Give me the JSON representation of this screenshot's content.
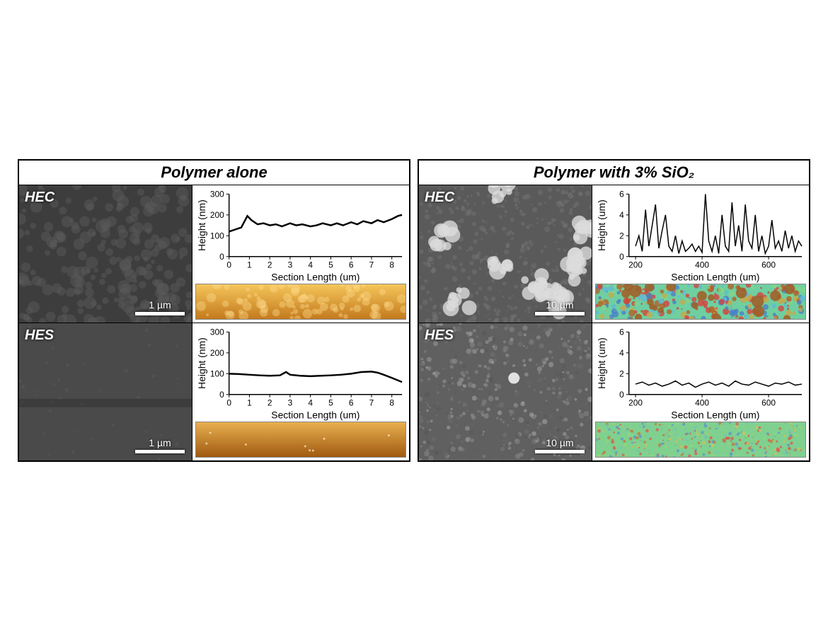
{
  "panels": [
    {
      "title": "Polymer alone",
      "rows": [
        {
          "sample_label": "HEC",
          "scalebar_text": "1 µm",
          "sem_style": "dark-bumpy",
          "chart": {
            "type": "line",
            "xlabel": "Section Length (um)",
            "ylabel": "Height (nm)",
            "xlim": [
              0,
              8.5
            ],
            "ylim": [
              0,
              300
            ],
            "xticks": [
              0,
              1,
              2,
              3,
              4,
              5,
              6,
              7,
              8
            ],
            "yticks": [
              0,
              100,
              200,
              300
            ],
            "line_color": "#000000",
            "line_width": 2.5,
            "data": [
              [
                0,
                120
              ],
              [
                0.3,
                130
              ],
              [
                0.6,
                140
              ],
              [
                0.9,
                195
              ],
              [
                1.1,
                175
              ],
              [
                1.4,
                155
              ],
              [
                1.7,
                160
              ],
              [
                2.0,
                150
              ],
              [
                2.3,
                155
              ],
              [
                2.6,
                145
              ],
              [
                3.0,
                160
              ],
              [
                3.3,
                150
              ],
              [
                3.6,
                155
              ],
              [
                4.0,
                145
              ],
              [
                4.3,
                150
              ],
              [
                4.6,
                160
              ],
              [
                5.0,
                150
              ],
              [
                5.3,
                160
              ],
              [
                5.6,
                150
              ],
              [
                6.0,
                165
              ],
              [
                6.3,
                155
              ],
              [
                6.6,
                170
              ],
              [
                7.0,
                160
              ],
              [
                7.3,
                175
              ],
              [
                7.6,
                165
              ],
              [
                8.0,
                180
              ],
              [
                8.3,
                195
              ],
              [
                8.5,
                200
              ]
            ]
          },
          "afm_style": "amber-bumpy"
        },
        {
          "sample_label": "HES",
          "scalebar_text": "1 µm",
          "sem_style": "dark-smooth",
          "chart": {
            "type": "line",
            "xlabel": "Section Length (um)",
            "ylabel": "Height (nm)",
            "xlim": [
              0,
              8.5
            ],
            "ylim": [
              0,
              300
            ],
            "xticks": [
              0,
              1,
              2,
              3,
              4,
              5,
              6,
              7,
              8
            ],
            "yticks": [
              0,
              100,
              200,
              300
            ],
            "line_color": "#000000",
            "line_width": 2.5,
            "data": [
              [
                0,
                100
              ],
              [
                0.5,
                98
              ],
              [
                1.0,
                95
              ],
              [
                1.5,
                92
              ],
              [
                2.0,
                90
              ],
              [
                2.5,
                92
              ],
              [
                2.8,
                108
              ],
              [
                3.0,
                95
              ],
              [
                3.5,
                90
              ],
              [
                4.0,
                88
              ],
              [
                4.5,
                90
              ],
              [
                5.0,
                92
              ],
              [
                5.5,
                95
              ],
              [
                6.0,
                100
              ],
              [
                6.5,
                108
              ],
              [
                7.0,
                110
              ],
              [
                7.3,
                105
              ],
              [
                7.6,
                95
              ],
              [
                8.0,
                80
              ],
              [
                8.5,
                60
              ]
            ]
          },
          "afm_style": "amber-smooth"
        }
      ]
    },
    {
      "title": "Polymer with  3% SiO₂",
      "rows": [
        {
          "sample_label": "HEC",
          "scalebar_text": "10 µm",
          "sem_style": "gray-clusters",
          "chart": {
            "type": "line",
            "xlabel": "Section Length (um)",
            "ylabel": "Height (um)",
            "xlim": [
              180,
              700
            ],
            "ylim": [
              0,
              6
            ],
            "xticks": [
              200,
              400,
              600
            ],
            "yticks": [
              0,
              2,
              4,
              6
            ],
            "line_color": "#000000",
            "line_width": 1.5,
            "data": [
              [
                200,
                1.0
              ],
              [
                210,
                2.0
              ],
              [
                220,
                0.5
              ],
              [
                230,
                4.5
              ],
              [
                240,
                1.0
              ],
              [
                250,
                3.0
              ],
              [
                260,
                5.0
              ],
              [
                270,
                0.8
              ],
              [
                280,
                2.5
              ],
              [
                290,
                4.0
              ],
              [
                300,
                1.0
              ],
              [
                310,
                0.5
              ],
              [
                320,
                2.0
              ],
              [
                330,
                0.3
              ],
              [
                340,
                1.5
              ],
              [
                350,
                0.5
              ],
              [
                360,
                0.8
              ],
              [
                370,
                1.2
              ],
              [
                380,
                0.5
              ],
              [
                390,
                1.0
              ],
              [
                400,
                0.4
              ],
              [
                410,
                6.0
              ],
              [
                420,
                1.5
              ],
              [
                430,
                0.5
              ],
              [
                440,
                2.0
              ],
              [
                450,
                0.3
              ],
              [
                460,
                4.0
              ],
              [
                470,
                1.0
              ],
              [
                480,
                0.5
              ],
              [
                490,
                5.2
              ],
              [
                500,
                1.0
              ],
              [
                510,
                3.0
              ],
              [
                520,
                0.5
              ],
              [
                530,
                5.0
              ],
              [
                540,
                1.5
              ],
              [
                550,
                0.8
              ],
              [
                560,
                4.0
              ],
              [
                570,
                0.5
              ],
              [
                580,
                2.0
              ],
              [
                590,
                0.3
              ],
              [
                600,
                1.0
              ],
              [
                610,
                3.5
              ],
              [
                620,
                0.8
              ],
              [
                630,
                1.5
              ],
              [
                640,
                0.5
              ],
              [
                650,
                2.5
              ],
              [
                660,
                0.8
              ],
              [
                670,
                2.0
              ],
              [
                680,
                0.5
              ],
              [
                690,
                1.5
              ],
              [
                700,
                1.0
              ]
            ]
          },
          "afm_style": "colormap-rough"
        },
        {
          "sample_label": "HES",
          "scalebar_text": "10 µm",
          "sem_style": "gray-fine",
          "chart": {
            "type": "line",
            "xlabel": "Section Length (um)",
            "ylabel": "Height (um)",
            "xlim": [
              180,
              700
            ],
            "ylim": [
              0,
              6
            ],
            "xticks": [
              200,
              400,
              600
            ],
            "yticks": [
              0,
              2,
              4,
              6
            ],
            "line_color": "#000000",
            "line_width": 1.5,
            "data": [
              [
                200,
                1.0
              ],
              [
                220,
                1.2
              ],
              [
                240,
                0.9
              ],
              [
                260,
                1.1
              ],
              [
                280,
                0.8
              ],
              [
                300,
                1.0
              ],
              [
                320,
                1.3
              ],
              [
                340,
                0.9
              ],
              [
                360,
                1.1
              ],
              [
                380,
                0.7
              ],
              [
                400,
                1.0
              ],
              [
                420,
                1.2
              ],
              [
                440,
                0.9
              ],
              [
                460,
                1.1
              ],
              [
                480,
                0.8
              ],
              [
                500,
                1.3
              ],
              [
                520,
                1.0
              ],
              [
                540,
                0.9
              ],
              [
                560,
                1.2
              ],
              [
                580,
                1.0
              ],
              [
                600,
                0.8
              ],
              [
                620,
                1.1
              ],
              [
                640,
                1.0
              ],
              [
                660,
                1.2
              ],
              [
                680,
                0.9
              ],
              [
                700,
                1.0
              ]
            ]
          },
          "afm_style": "colormap-fine"
        }
      ]
    }
  ],
  "colors": {
    "background": "#ffffff",
    "border": "#000000",
    "amber_light": "#f8c968",
    "amber_dark": "#b8701a",
    "sem_dark": "#3a3a3a",
    "sem_gray": "#6a6a6a",
    "colormap_base": "#7fd68c"
  }
}
